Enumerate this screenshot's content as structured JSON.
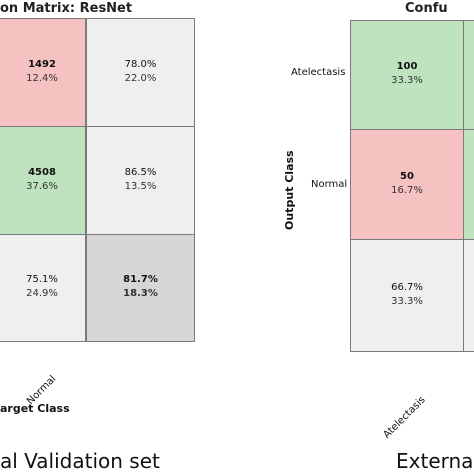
{
  "left_panel": {
    "title": "on Matrix: ResNet",
    "x_axis_title": "arget Class",
    "x_tick": "Normal",
    "caption": "al Validation set"
  },
  "right_panel": {
    "title": "Confu",
    "y_axis_title": "Output Class",
    "y_ticks": [
      "Atelectasis",
      "Normal"
    ],
    "x_tick": "Atelectasis",
    "caption": "Externa"
  },
  "chart_data": [
    {
      "type": "heatmap",
      "title": "on Matrix: ResNet",
      "xlabel": "arget Class",
      "cells": [
        {
          "row": 0,
          "col": 0,
          "count": "1492",
          "pct": "12.4%"
        },
        {
          "row": 0,
          "col": 1,
          "pct_good": "78.0%",
          "pct_bad": "22.0%"
        },
        {
          "row": 1,
          "col": 0,
          "count": "4508",
          "pct": "37.6%"
        },
        {
          "row": 1,
          "col": 1,
          "pct_good": "86.5%",
          "pct_bad": "13.5%"
        },
        {
          "row": 2,
          "col": 0,
          "pct_good": "75.1%",
          "pct_bad": "24.9%"
        },
        {
          "row": 2,
          "col": 1,
          "pct_good": "81.7%",
          "pct_bad": "18.3%"
        }
      ],
      "colors": {
        "correct": "#bfe3bf",
        "incorrect": "#f6c1c1",
        "summary": "#efefef",
        "total": "#d6d6d6"
      }
    },
    {
      "type": "heatmap",
      "title": "Confu",
      "ylabel": "Output Class",
      "cells": [
        {
          "row": 0,
          "col": 0,
          "count": "100",
          "pct": "33.3%"
        },
        {
          "row": 1,
          "col": 0,
          "count": "50",
          "pct": "16.7%"
        },
        {
          "row": 2,
          "col": 0,
          "pct_good": "66.7%",
          "pct_bad": "33.3%"
        }
      ],
      "colors": {
        "correct": "#bfe3bf",
        "incorrect": "#f6c1c1",
        "summary": "#efefef",
        "side": "#bfe3bf"
      }
    }
  ]
}
